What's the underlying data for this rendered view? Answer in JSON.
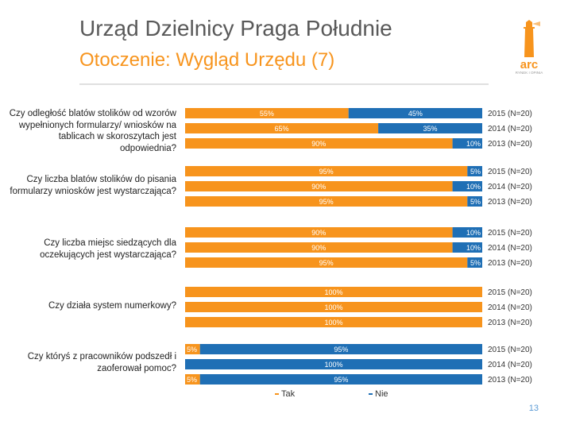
{
  "slide": {
    "title": "Urząd Dzielnicy Praga Południe",
    "subtitle": "Otoczenie: Wygląd Urzędu (7)",
    "page_number": "13",
    "logo_text": "arc",
    "logo_tagline": "RYNEK I OPINIA"
  },
  "chart_data": {
    "type": "bar",
    "orientation": "horizontal",
    "stacked": true,
    "percent_format": "%",
    "series": [
      {
        "name": "Tak",
        "color": "#f7941d"
      },
      {
        "name": "Nie",
        "color": "#1f6fb5"
      }
    ],
    "groups": [
      {
        "question": "Czy odległość blatów stolików od wzorów wypełnionych formularzy/ wniosków na tablicach w skoroszytach jest odpowiednia?",
        "rows": [
          {
            "year": "2015 (N=20)",
            "tak": 55,
            "nie": 45
          },
          {
            "year": "2014 (N=20)",
            "tak": 65,
            "nie": 35
          },
          {
            "year": "2013 (N=20)",
            "tak": 90,
            "nie": 10
          }
        ]
      },
      {
        "question": "Czy liczba blatów stolików do pisania formularzy wniosków jest wystarczająca?",
        "rows": [
          {
            "year": "2015 (N=20)",
            "tak": 95,
            "nie": 5
          },
          {
            "year": "2014 (N=20)",
            "tak": 90,
            "nie": 10
          },
          {
            "year": "2013 (N=20)",
            "tak": 95,
            "nie": 5
          }
        ]
      },
      {
        "question": "Czy liczba miejsc siedzących dla oczekujących jest wystarczająca?",
        "rows": [
          {
            "year": "2015 (N=20)",
            "tak": 90,
            "nie": 10
          },
          {
            "year": "2014 (N=20)",
            "tak": 90,
            "nie": 10
          },
          {
            "year": "2013 (N=20)",
            "tak": 95,
            "nie": 5
          }
        ]
      },
      {
        "question": "Czy działa system numerkowy?",
        "rows": [
          {
            "year": "2015 (N=20)",
            "tak": 100,
            "nie": 0
          },
          {
            "year": "2014 (N=20)",
            "tak": 100,
            "nie": 0
          },
          {
            "year": "2013 (N=20)",
            "tak": 100,
            "nie": 0
          }
        ]
      },
      {
        "question": "Czy któryś z pracowników podszedł i zaoferował pomoc?",
        "rows": [
          {
            "year": "2015 (N=20)",
            "tak": 5,
            "nie": 95
          },
          {
            "year": "2014 (N=20)",
            "tak": 0,
            "nie": 100
          },
          {
            "year": "2013 (N=20)",
            "tak": 5,
            "nie": 95
          }
        ]
      }
    ]
  }
}
